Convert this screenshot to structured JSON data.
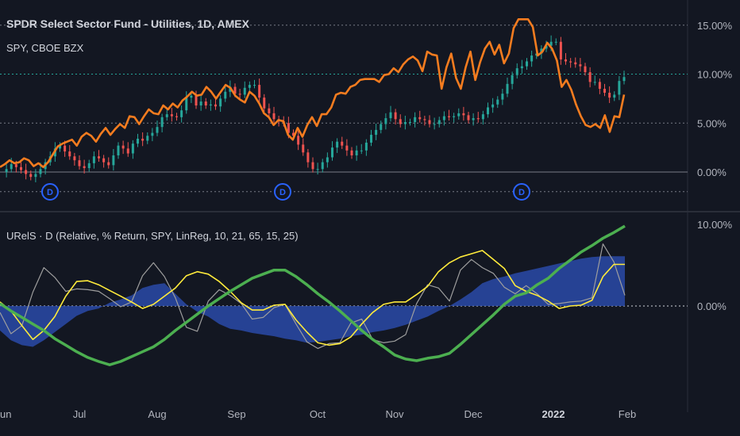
{
  "header": {
    "title": "SPDR Select Sector Fund - Utilities, 1D, AMEX",
    "compare": "SPY, CBOE BZX",
    "indicator": "URelS · D (Relative, % Return, SPY, LinReg, 10, 21, 65, 15, 25)"
  },
  "colors": {
    "background": "#131722",
    "up": "#26a69a",
    "down": "#ef5350",
    "spy": "#f57c1f",
    "fast": "#ffeb3b",
    "slow": "#4caf50",
    "rel": "#9e9e9e",
    "fill": "#2a4aa8",
    "grid": "#2a2e39",
    "dividend": "#2962ff"
  },
  "chart_data": [
    {
      "type": "line",
      "title": "SPDR Select Sector Fund - Utilities, 1D, AMEX",
      "subtitle": "SPY, CBOE BZX",
      "x_ticks": [
        "Jun",
        "Jul",
        "Aug",
        "Sep",
        "Oct",
        "Nov",
        "Dec",
        "2022",
        "Feb"
      ],
      "y_ticks": [
        "15.00%",
        "10.00%",
        "5.00%",
        "0.00%"
      ],
      "ylim": [
        -2.2,
        16.5
      ],
      "dividends": [
        {
          "date": "Jun 21",
          "label": "D"
        },
        {
          "date": "Sep 20",
          "label": "D"
        },
        {
          "date": "Dec 20",
          "label": "D"
        }
      ],
      "series": [
        {
          "name": "SPY, CBOE BZX",
          "values": [
            0.5,
            0.8,
            1.2,
            0.9,
            1.0,
            1.4,
            1.2,
            0.6,
            0.9,
            0.5,
            1.0,
            1.8,
            2.6,
            2.9,
            3.1,
            3.3,
            2.7,
            3.6,
            4.0,
            3.7,
            3.1,
            3.9,
            4.5,
            3.8,
            4.4,
            4.9,
            4.5,
            5.7,
            5.6,
            4.9,
            5.7,
            6.4,
            6.0,
            5.9,
            6.8,
            6.4,
            7.0,
            6.6,
            7.3,
            7.7,
            8.2,
            7.8,
            7.9,
            8.7,
            8.2,
            7.5,
            8.2,
            8.9,
            8.6,
            7.8,
            7.4,
            7.1,
            8.2,
            7.8,
            7.0,
            6.0,
            5.6,
            4.8,
            5.3,
            5.2,
            3.8,
            3.3,
            4.5,
            3.6,
            4.8,
            5.6,
            4.7,
            5.9,
            5.9,
            6.6,
            7.9,
            8.1,
            8.0,
            8.7,
            8.9,
            9.4,
            9.5,
            9.5,
            9.5,
            9.2,
            9.9,
            10.0,
            10.6,
            10.2,
            11.0,
            11.5,
            11.8,
            11.4,
            10.3,
            12.3,
            12.0,
            11.9,
            8.5,
            10.7,
            12.1,
            9.6,
            8.5,
            10.7,
            12.3,
            9.4,
            11.2,
            12.6,
            13.3,
            12.0,
            13.0,
            11.1,
            12.1,
            14.7,
            15.6,
            15.6,
            15.6,
            14.8,
            11.9,
            12.3,
            13.2,
            12.6,
            11.4,
            8.7,
            9.4,
            8.4,
            6.9,
            5.7,
            4.8,
            4.6,
            4.9,
            4.5,
            5.8,
            4.1,
            5.7,
            5.6,
            7.9
          ]
        },
        {
          "name": "Utilities",
          "values": [
            0.0,
            0.3,
            0.8,
            0.5,
            0.2,
            -0.2,
            -0.5,
            -0.2,
            0.3,
            1.0,
            1.6,
            2.4,
            2.7,
            2.1,
            1.6,
            1.2,
            0.6,
            0.4,
            0.9,
            1.6,
            1.4,
            1.0,
            0.7,
            1.7,
            2.7,
            2.4,
            1.9,
            2.9,
            3.4,
            3.2,
            3.7,
            4.0,
            4.6,
            5.6,
            5.9,
            5.7,
            5.6,
            6.3,
            7.6,
            7.8,
            6.8,
            7.2,
            6.8,
            6.9,
            6.7,
            7.5,
            8.2,
            8.7,
            8.0,
            7.9,
            8.6,
            8.9,
            8.9,
            7.6,
            6.5,
            6.0,
            5.4,
            5.2,
            5.0,
            4.0,
            3.7,
            2.8,
            2.0,
            1.0,
            0.3,
            0.3,
            1.0,
            1.5,
            2.5,
            3.1,
            2.7,
            2.2,
            1.7,
            2.2,
            2.2,
            3.0,
            3.8,
            4.3,
            4.9,
            5.5,
            6.1,
            5.4,
            4.9,
            5.1,
            5.1,
            5.6,
            5.4,
            5.3,
            4.9,
            4.9,
            5.3,
            5.7,
            5.6,
            5.7,
            6.0,
            5.8,
            5.3,
            5.5,
            5.4,
            5.9,
            6.6,
            6.9,
            7.4,
            8.0,
            9.0,
            9.9,
            10.6,
            10.8,
            11.3,
            11.9,
            12.1,
            12.6,
            12.9,
            13.3,
            13.3,
            11.5,
            11.3,
            11.2,
            11.0,
            10.8,
            10.2,
            9.2,
            9.2,
            8.5,
            8.1,
            7.6,
            7.9,
            9.3,
            9.7
          ]
        }
      ]
    },
    {
      "type": "area",
      "title": "URelS · D (Relative, % Return, SPY, LinReg, 10, 21, 65, 15, 25)",
      "x_ticks": [
        "Jun",
        "Jul",
        "Aug",
        "Sep",
        "Oct",
        "Nov",
        "Dec",
        "2022",
        "Feb"
      ],
      "y_ticks": [
        "10.00%",
        "0.00%"
      ],
      "ylim": [
        -9.5,
        10.5
      ],
      "series": [
        {
          "name": "Green",
          "values": [
            0.3,
            -0.6,
            -1.4,
            -2.2,
            -3.0,
            -4.0,
            -4.8,
            -5.6,
            -6.3,
            -6.8,
            -7.2,
            -6.8,
            -6.2,
            -5.6,
            -5.0,
            -4.1,
            -3.0,
            -2.0,
            -1.0,
            0.0,
            0.9,
            1.8,
            2.6,
            3.4,
            3.9,
            4.4,
            4.4,
            3.6,
            2.6,
            1.5,
            0.5,
            -0.6,
            -1.8,
            -3.0,
            -4.1,
            -5.0,
            -6.0,
            -6.5,
            -6.7,
            -6.4,
            -6.2,
            -5.8,
            -4.7,
            -3.5,
            -2.3,
            -1.1,
            0.2,
            1.2,
            1.6,
            2.6,
            3.4,
            4.6,
            5.6,
            6.6,
            7.4,
            8.3,
            9.0,
            9.8
          ]
        },
        {
          "name": "Yellow",
          "values": [
            0.5,
            -0.6,
            -2.4,
            -4.1,
            -3.0,
            -1.3,
            1.2,
            3.0,
            3.1,
            2.6,
            1.9,
            1.2,
            0.5,
            -0.3,
            0.2,
            1.2,
            2.2,
            3.7,
            4.2,
            3.9,
            3.0,
            1.8,
            0.4,
            -0.5,
            -0.5,
            0.1,
            0.2,
            -1.7,
            -3.2,
            -4.5,
            -4.8,
            -4.6,
            -3.8,
            -2.2,
            -0.8,
            0.2,
            0.5,
            0.5,
            1.4,
            2.4,
            4.2,
            5.3,
            6.0,
            6.4,
            6.8,
            5.7,
            4.6,
            2.5,
            1.8,
            1.3,
            0.6,
            -0.3,
            0.0,
            0.1,
            0.7,
            3.6,
            5.1,
            5.1
          ]
        },
        {
          "name": "Gray",
          "values": [
            -0.8,
            -3.4,
            -2.4,
            1.7,
            4.7,
            3.5,
            1.8,
            2.1,
            2.0,
            1.8,
            0.9,
            -0.1,
            0.5,
            3.7,
            5.3,
            3.6,
            1.0,
            -2.6,
            -3.1,
            0.6,
            2.0,
            1.3,
            0.3,
            -1.6,
            -1.4,
            -0.2,
            0.2,
            -2.2,
            -4.4,
            -5.2,
            -4.6,
            -4.5,
            -2.1,
            -1.6,
            -4.1,
            -4.5,
            -4.3,
            -3.5,
            0.3,
            2.6,
            2.2,
            0.6,
            4.4,
            5.7,
            4.7,
            4.0,
            2.3,
            1.5,
            2.5,
            1.5,
            0.2,
            0.3,
            0.5,
            0.6,
            1.0,
            7.6,
            5.4,
            1.3
          ]
        },
        {
          "name": "Blue",
          "values": [
            -3.0,
            -4.2,
            -4.8,
            -5.0,
            -4.2,
            -3.2,
            -2.2,
            -1.2,
            -0.6,
            -0.3,
            0.4,
            0.8,
            1.3,
            2.2,
            2.6,
            2.8,
            1.5,
            0.2,
            -0.7,
            -1.3,
            -2.2,
            -2.8,
            -3.0,
            -3.3,
            -3.5,
            -3.7,
            -4.0,
            -4.2,
            -4.5,
            -4.4,
            -4.2,
            -4.0,
            -3.7,
            -3.5,
            -3.2,
            -3.0,
            -2.7,
            -2.3,
            -1.8,
            -1.3,
            -0.6,
            0.0,
            0.8,
            1.7,
            2.8,
            3.3,
            3.6,
            4.0,
            4.3,
            4.6,
            4.9,
            5.2,
            5.5,
            5.8,
            6.0,
            6.1,
            6.1,
            6.1
          ]
        }
      ]
    }
  ]
}
